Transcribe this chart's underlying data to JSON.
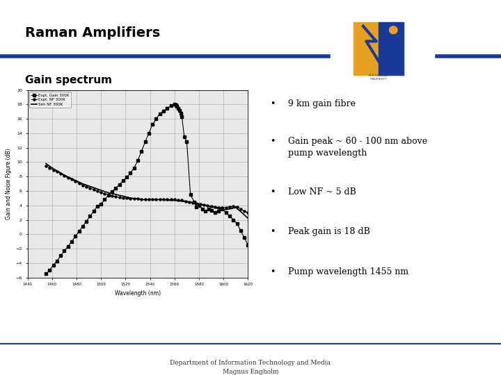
{
  "title": "Raman Amplifiers",
  "subtitle": "Gain spectrum",
  "bg_color": "#ffffff",
  "title_color": "#000000",
  "title_bar_color": "#1a3a99",
  "bullet_points": [
    "9 km gain fibre",
    "Gain peak ~ 60 - 100 nm above\npump wavelength",
    "Low NF ~ 5 dB",
    "Peak gain is 18 dB",
    "Pump wavelength 1455 nm"
  ],
  "footer_line1": "Department of Information Technology and Media",
  "footer_line2": "Magnus Engholm",
  "plot_xlabel": "Wavelength (nm)",
  "plot_ylabel": "Gain and Noise Figure (dB)",
  "plot_ylim": [
    -6,
    20
  ],
  "plot_xlim": [
    1440,
    1620
  ],
  "plot_yticks": [
    -6,
    -4,
    -2,
    0,
    2,
    4,
    6,
    8,
    10,
    12,
    14,
    16,
    18,
    20
  ],
  "plot_xticks": [
    1440,
    1460,
    1480,
    1500,
    1520,
    1540,
    1560,
    1580,
    1600,
    1620
  ],
  "legend_entries": [
    "Expt. Gain 300K",
    "Expt. NF 300K",
    "Sim NF 300K"
  ],
  "gain_x": [
    1455,
    1458,
    1461,
    1464,
    1467,
    1470,
    1473,
    1476,
    1479,
    1482,
    1485,
    1488,
    1491,
    1494,
    1497,
    1500,
    1503,
    1506,
    1509,
    1512,
    1515,
    1518,
    1521,
    1524,
    1527,
    1530,
    1533,
    1536,
    1539,
    1542,
    1545,
    1548,
    1551,
    1554,
    1557,
    1560,
    1561,
    1562,
    1563,
    1564,
    1565,
    1566,
    1568,
    1570,
    1573,
    1576,
    1578,
    1580,
    1583,
    1585,
    1588,
    1590,
    1593,
    1596,
    1599,
    1602,
    1605,
    1608,
    1611,
    1614,
    1617,
    1620
  ],
  "gain_y": [
    -5.5,
    -5.0,
    -4.3,
    -3.7,
    -3.0,
    -2.3,
    -1.7,
    -1.0,
    -0.3,
    0.4,
    1.1,
    1.8,
    2.5,
    3.2,
    3.9,
    4.2,
    4.8,
    5.4,
    5.9,
    6.4,
    6.9,
    7.4,
    7.9,
    8.5,
    9.2,
    10.2,
    11.5,
    12.8,
    14.0,
    15.2,
    16.0,
    16.7,
    17.1,
    17.5,
    17.8,
    18.0,
    17.9,
    17.7,
    17.5,
    17.2,
    16.8,
    16.3,
    13.5,
    12.8,
    5.5,
    4.5,
    3.8,
    4.0,
    3.5,
    3.2,
    3.5,
    3.3,
    3.0,
    3.2,
    3.5,
    3.0,
    2.5,
    2.0,
    1.5,
    0.5,
    -0.5,
    -1.5
  ],
  "nf_expt_x": [
    1455,
    1458,
    1461,
    1464,
    1467,
    1470,
    1473,
    1476,
    1479,
    1482,
    1485,
    1488,
    1491,
    1494,
    1497,
    1500,
    1503,
    1506,
    1509,
    1512,
    1515,
    1518,
    1521,
    1524,
    1527,
    1530,
    1533,
    1536,
    1539,
    1542,
    1545,
    1548,
    1551,
    1554,
    1557,
    1560,
    1563,
    1566,
    1569,
    1572,
    1575,
    1578,
    1581,
    1584,
    1587,
    1590,
    1593,
    1596,
    1599,
    1602,
    1605,
    1608,
    1611,
    1614,
    1617,
    1620
  ],
  "nf_expt_y": [
    9.5,
    9.2,
    8.9,
    8.7,
    8.4,
    8.1,
    7.8,
    7.6,
    7.3,
    7.1,
    6.8,
    6.6,
    6.4,
    6.2,
    6.0,
    5.8,
    5.6,
    5.5,
    5.3,
    5.2,
    5.1,
    5.0,
    5.0,
    4.9,
    4.9,
    4.9,
    4.8,
    4.8,
    4.8,
    4.8,
    4.8,
    4.8,
    4.8,
    4.8,
    4.8,
    4.8,
    4.7,
    4.7,
    4.6,
    4.5,
    4.4,
    4.3,
    4.2,
    4.1,
    4.0,
    3.9,
    3.8,
    3.7,
    3.7,
    3.7,
    3.8,
    3.9,
    3.8,
    3.5,
    3.2,
    3.0
  ],
  "nf_sim_x": [
    1455,
    1460,
    1465,
    1470,
    1475,
    1480,
    1485,
    1490,
    1495,
    1500,
    1505,
    1510,
    1515,
    1520,
    1525,
    1530,
    1535,
    1540,
    1545,
    1550,
    1555,
    1560,
    1565,
    1570,
    1575,
    1580,
    1585,
    1590,
    1595,
    1600,
    1605,
    1610,
    1615,
    1620
  ],
  "nf_sim_y": [
    9.8,
    9.2,
    8.7,
    8.2,
    7.8,
    7.4,
    7.0,
    6.7,
    6.4,
    6.1,
    5.8,
    5.6,
    5.4,
    5.2,
    5.0,
    4.9,
    4.8,
    4.8,
    4.8,
    4.8,
    4.7,
    4.7,
    4.6,
    4.5,
    4.4,
    4.2,
    4.0,
    3.8,
    3.6,
    3.4,
    3.5,
    3.7,
    3.0,
    2.2
  ]
}
